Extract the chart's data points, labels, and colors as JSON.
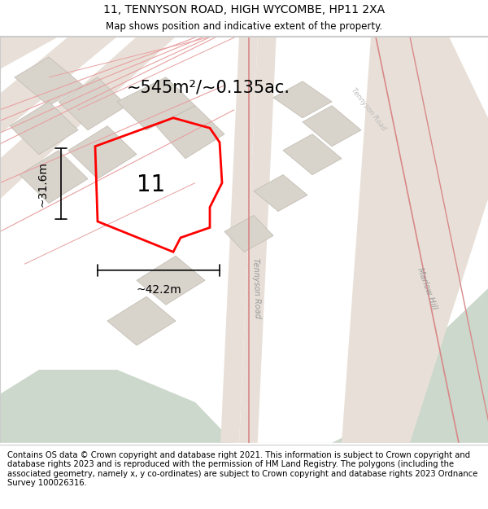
{
  "title": "11, TENNYSON ROAD, HIGH WYCOMBE, HP11 2XA",
  "subtitle": "Map shows position and indicative extent of the property.",
  "footer": "Contains OS data © Crown copyright and database right 2021. This information is subject to Crown copyright and database rights 2023 and is reproduced with the permission of HM Land Registry. The polygons (including the associated geometry, namely x, y co-ordinates) are subject to Crown copyright and database rights 2023 Ordnance Survey 100026316.",
  "area_label": "~545m²/~0.135ac.",
  "width_label": "~42.2m",
  "height_label": "~31.6m",
  "property_number": "11",
  "map_bg": "#f2efeb",
  "building_color": "#d8d4cc",
  "building_edge": "#c4beb4",
  "road_line_color": "#e8a0a0",
  "road_line_color2": "#d88888",
  "green_color": "#ccd8cc",
  "title_fontsize": 10,
  "subtitle_fontsize": 8.5,
  "footer_fontsize": 7.2,
  "label_fontsize": 15,
  "number_fontsize": 20,
  "dim_fontsize": 10,
  "street_fontsize": 7
}
